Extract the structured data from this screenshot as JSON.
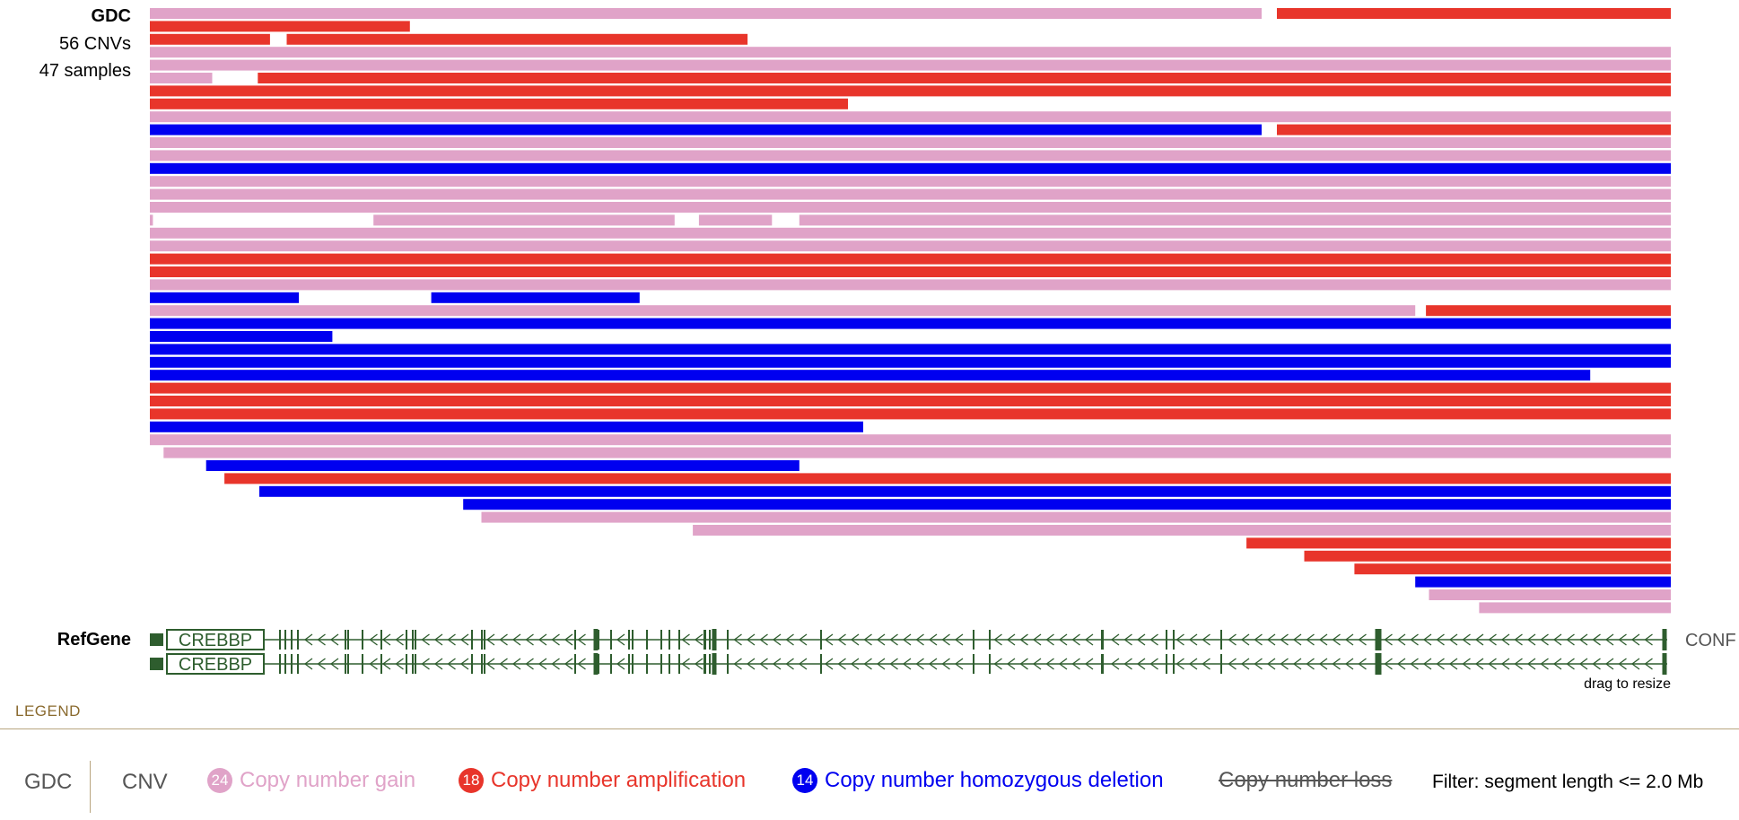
{
  "track": {
    "name": "GDC",
    "cnv_count": "56 CNVs",
    "sample_count": "47 samples"
  },
  "refgene": {
    "label": "RefGene",
    "gene_name": "CREBBP",
    "next_gene_partial": "CONF",
    "resize_hint": "drag to resize"
  },
  "colors": {
    "gain": "#e0a3c8",
    "amplification": "#e8352b",
    "deletion": "#0000f0",
    "gene": "#2e5d2e"
  },
  "legend": {
    "title": "LEGEND",
    "source": "GDC",
    "type": "CNV",
    "items": [
      {
        "count": "24",
        "label": "Copy number gain",
        "color": "#e0a3c8"
      },
      {
        "count": "18",
        "label": "Copy number amplification",
        "color": "#e8352b"
      },
      {
        "count": "14",
        "label": "Copy number homozygous deletion",
        "color": "#0000f0"
      }
    ],
    "hidden_item": "Copy number loss",
    "filter": "Filter: segment length <= 2.0 Mb"
  },
  "chart_data": {
    "type": "segments",
    "region_fraction": [
      0,
      1
    ],
    "rows": [
      [
        [
          "gain",
          0,
          0.731
        ],
        [
          "amp",
          0.741,
          1
        ]
      ],
      [
        [
          "amp",
          0,
          0.171
        ]
      ],
      [
        [
          "amp",
          0,
          0.079
        ],
        [
          "amp",
          0.09,
          0.393
        ]
      ],
      [
        [
          "gain",
          0,
          1
        ]
      ],
      [
        [
          "gain",
          0,
          1
        ]
      ],
      [
        [
          "gain",
          0,
          0.041
        ],
        [
          "amp",
          0.071,
          1
        ]
      ],
      [
        [
          "amp",
          0,
          1
        ]
      ],
      [
        [
          "amp",
          0,
          0.459
        ]
      ],
      [
        [
          "gain",
          0,
          1
        ]
      ],
      [
        [
          "del",
          0,
          0.731
        ],
        [
          "amp",
          0.741,
          1
        ]
      ],
      [
        [
          "gain",
          0,
          1
        ]
      ],
      [
        [
          "gain",
          0,
          1
        ]
      ],
      [
        [
          "del",
          0,
          1
        ]
      ],
      [
        [
          "gain",
          0,
          1
        ]
      ],
      [
        [
          "gain",
          0,
          1
        ]
      ],
      [
        [
          "gain",
          0,
          1
        ]
      ],
      [
        [
          "gain",
          0,
          0.002
        ],
        [
          "gain",
          0.147,
          0.345
        ],
        [
          "gain",
          0.361,
          0.409
        ],
        [
          "gain",
          0.427,
          1
        ]
      ],
      [
        [
          "gain",
          0,
          1
        ]
      ],
      [
        [
          "gain",
          0,
          1
        ]
      ],
      [
        [
          "amp",
          0,
          1
        ]
      ],
      [
        [
          "amp",
          0,
          1
        ]
      ],
      [
        [
          "gain",
          0,
          1
        ]
      ],
      [
        [
          "del",
          0,
          0.098
        ],
        [
          "del",
          0.185,
          0.322
        ]
      ],
      [
        [
          "gain",
          0,
          0.832
        ],
        [
          "amp",
          0.839,
          1
        ]
      ],
      [
        [
          "del",
          0,
          1
        ]
      ],
      [
        [
          "del",
          0,
          0.12
        ]
      ],
      [
        [
          "del",
          0,
          1
        ]
      ],
      [
        [
          "del",
          0,
          1
        ]
      ],
      [
        [
          "del",
          0,
          0.947
        ]
      ],
      [
        [
          "amp",
          0,
          1
        ]
      ],
      [
        [
          "amp",
          0,
          1
        ]
      ],
      [
        [
          "amp",
          0,
          1
        ]
      ],
      [
        [
          "del",
          0,
          0.469
        ]
      ],
      [
        [
          "gain",
          0,
          1
        ]
      ],
      [
        [
          "gain",
          0.009,
          1
        ]
      ],
      [
        [
          "del",
          0.037,
          0.427
        ]
      ],
      [
        [
          "amp",
          0.049,
          1
        ]
      ],
      [
        [
          "del",
          0.072,
          1
        ]
      ],
      [
        [
          "del",
          0.206,
          1
        ]
      ],
      [
        [
          "gain",
          0.218,
          1
        ]
      ],
      [
        [
          "gain",
          0.357,
          1
        ]
      ],
      [
        [
          "amp",
          0.721,
          1
        ]
      ],
      [
        [
          "amp",
          0.759,
          1
        ]
      ],
      [
        [
          "amp",
          0.792,
          1
        ]
      ],
      [
        [
          "del",
          0.832,
          1
        ]
      ],
      [
        [
          "gain",
          0.841,
          1
        ]
      ],
      [
        [
          "gain",
          0.874,
          1
        ]
      ]
    ]
  }
}
